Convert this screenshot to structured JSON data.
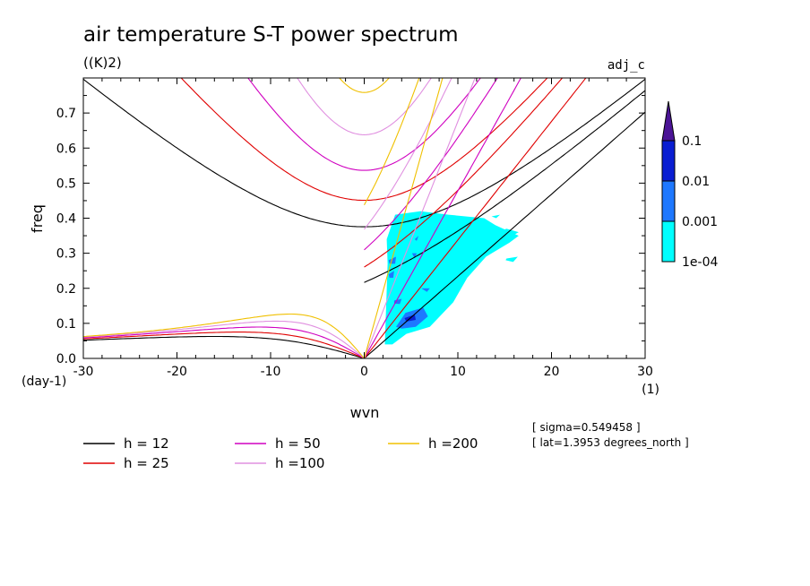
{
  "chart_data": {
    "type": "contour",
    "title": "air temperature S-T power spectrum",
    "subtitle": "((K)2)",
    "corner_label": "adj_c",
    "xlabel": "wvn",
    "ylabel": "freq",
    "x_unit": "(1)",
    "y_unit": "(day-1)",
    "xlim": [
      -30,
      30
    ],
    "ylim": [
      0,
      0.8
    ],
    "x_ticks": [
      -30,
      -20,
      -10,
      0,
      10,
      20,
      30
    ],
    "x_tick_labels": [
      "-30",
      "-20",
      "-10",
      "0",
      "10",
      "20",
      "30"
    ],
    "y_ticks": [
      0,
      0.1,
      0.2,
      0.3,
      0.4,
      0.5,
      0.6,
      0.7
    ],
    "y_tick_labels": [
      "0.0",
      "0.1",
      "0.2",
      "0.3",
      "0.4",
      "0.5",
      "0.6",
      "0.7"
    ],
    "colorbar": {
      "levels": [
        "1e-04",
        "0.001",
        "0.01",
        "0.1"
      ],
      "colors": [
        "#00ffff",
        "#1e78ff",
        "#0a1ed2",
        "#4b1496"
      ]
    },
    "dispersion_curves": [
      {
        "label": "h = 12",
        "h": 12,
        "color": "#000000"
      },
      {
        "label": "h = 25",
        "h": 25,
        "color": "#e00000"
      },
      {
        "label": "h = 50",
        "h": 50,
        "color": "#d000c0"
      },
      {
        "label": "h =100",
        "h": 100,
        "color": "#e090e0"
      },
      {
        "label": "h =200",
        "h": 200,
        "color": "#f0c000"
      }
    ],
    "shaded_regions": [
      {
        "level": "1e-04",
        "points": [
          [
            2.2,
            0.04
          ],
          [
            2.5,
            0.27
          ],
          [
            2.4,
            0.34
          ],
          [
            3.3,
            0.41
          ],
          [
            6,
            0.42
          ],
          [
            9,
            0.41
          ],
          [
            12.8,
            0.4
          ],
          [
            14,
            0.38
          ],
          [
            16.5,
            0.35
          ],
          [
            15.5,
            0.33
          ],
          [
            13,
            0.29
          ],
          [
            11,
            0.23
          ],
          [
            9.5,
            0.16
          ],
          [
            7,
            0.09
          ],
          [
            4.5,
            0.07
          ],
          [
            3,
            0.04
          ]
        ]
      },
      {
        "level": "1e-04",
        "points": [
          [
            14.2,
            0.36
          ],
          [
            15.2,
            0.37
          ],
          [
            16.5,
            0.36
          ],
          [
            15.8,
            0.35
          ],
          [
            14.6,
            0.355
          ]
        ]
      },
      {
        "level": "1e-04",
        "points": [
          [
            15.2,
            0.285
          ],
          [
            16.4,
            0.29
          ],
          [
            15.9,
            0.275
          ],
          [
            15.1,
            0.28
          ]
        ]
      },
      {
        "level": "1e-04",
        "points": [
          [
            13.6,
            0.405
          ],
          [
            14.5,
            0.41
          ],
          [
            14.1,
            0.4
          ]
        ]
      },
      {
        "level": "0.001",
        "points": [
          [
            3.4,
            0.09
          ],
          [
            4.4,
            0.13
          ],
          [
            6.3,
            0.145
          ],
          [
            6.8,
            0.12
          ],
          [
            5.5,
            0.09
          ],
          [
            4,
            0.085
          ]
        ]
      },
      {
        "level": "0.001",
        "points": [
          [
            2.6,
            0.28
          ],
          [
            3.4,
            0.29
          ],
          [
            3.3,
            0.27
          ],
          [
            2.7,
            0.27
          ]
        ]
      },
      {
        "level": "0.001",
        "points": [
          [
            2.6,
            0.24
          ],
          [
            3.2,
            0.25
          ],
          [
            3.1,
            0.23
          ],
          [
            2.7,
            0.23
          ]
        ]
      },
      {
        "level": "0.001",
        "points": [
          [
            5.1,
            0.3
          ],
          [
            5.6,
            0.3
          ],
          [
            5.4,
            0.285
          ]
        ]
      },
      {
        "level": "0.001",
        "points": [
          [
            3.2,
            0.165
          ],
          [
            4,
            0.17
          ],
          [
            3.8,
            0.155
          ],
          [
            3.2,
            0.157
          ]
        ]
      },
      {
        "level": "0.001",
        "points": [
          [
            6.1,
            0.2
          ],
          [
            7,
            0.2
          ],
          [
            6.7,
            0.19
          ]
        ]
      },
      {
        "level": "0.001",
        "points": [
          [
            5.4,
            0.34
          ],
          [
            5.8,
            0.35
          ],
          [
            5.6,
            0.335
          ]
        ]
      },
      {
        "level": "0.01",
        "points": [
          [
            4.3,
            0.115
          ],
          [
            5.4,
            0.125
          ],
          [
            5.5,
            0.11
          ],
          [
            4.5,
            0.105
          ]
        ]
      }
    ]
  }
}
